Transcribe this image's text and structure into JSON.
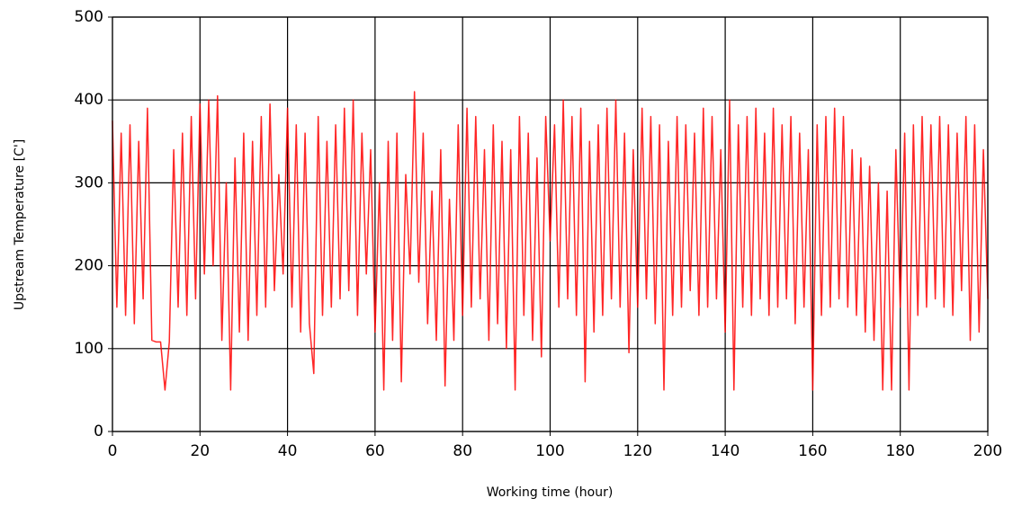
{
  "chart_data": {
    "type": "line",
    "x_label": "Working time (hour)",
    "y_label": "Upstream Temperature [C']",
    "x": [
      0,
      1,
      2,
      3,
      4,
      5,
      6,
      7,
      8,
      9,
      10,
      11,
      12,
      13,
      14,
      15,
      16,
      17,
      18,
      19,
      20,
      21,
      22,
      23,
      24,
      25,
      26,
      27,
      28,
      29,
      30,
      31,
      32,
      33,
      34,
      35,
      36,
      37,
      38,
      39,
      40,
      41,
      42,
      43,
      44,
      45,
      46,
      47,
      48,
      49,
      50,
      51,
      52,
      53,
      54,
      55,
      56,
      57,
      58,
      59,
      60,
      61,
      62,
      63,
      64,
      65,
      66,
      67,
      68,
      69,
      70,
      71,
      72,
      73,
      74,
      75,
      76,
      77,
      78,
      79,
      80,
      81,
      82,
      83,
      84,
      85,
      86,
      87,
      88,
      89,
      90,
      91,
      92,
      93,
      94,
      95,
      96,
      97,
      98,
      99,
      100,
      101,
      102,
      103,
      104,
      105,
      106,
      107,
      108,
      109,
      110,
      111,
      112,
      113,
      114,
      115,
      116,
      117,
      118,
      119,
      120,
      121,
      122,
      123,
      124,
      125,
      126,
      127,
      128,
      129,
      130,
      131,
      132,
      133,
      134,
      135,
      136,
      137,
      138,
      139,
      140,
      141,
      142,
      143,
      144,
      145,
      146,
      147,
      148,
      149,
      150,
      151,
      152,
      153,
      154,
      155,
      156,
      157,
      158,
      159,
      160,
      161,
      162,
      163,
      164,
      165,
      166,
      167,
      168,
      169,
      170,
      171,
      172,
      173,
      174,
      175,
      176,
      177,
      178,
      179,
      180,
      181,
      182,
      183,
      184,
      185,
      186,
      187,
      188,
      189,
      190,
      191,
      192,
      193,
      194,
      195,
      196,
      197,
      198,
      199,
      200
    ],
    "series": [
      {
        "color": "#ff0000",
        "values": [
          375,
          150,
          360,
          140,
          370,
          130,
          350,
          160,
          390,
          110,
          108,
          108,
          50,
          108,
          340,
          150,
          360,
          140,
          380,
          160,
          395,
          190,
          400,
          200,
          405,
          110,
          300,
          50,
          330,
          120,
          360,
          110,
          350,
          140,
          380,
          150,
          395,
          170,
          310,
          190,
          390,
          150,
          370,
          120,
          360,
          130,
          70,
          380,
          140,
          350,
          150,
          370,
          160,
          390,
          170,
          400,
          140,
          360,
          190,
          340,
          120,
          300,
          50,
          350,
          110,
          360,
          60,
          310,
          190,
          410,
          180,
          360,
          130,
          290,
          110,
          340,
          55,
          280,
          110,
          370,
          140,
          390,
          150,
          380,
          160,
          340,
          110,
          370,
          130,
          350,
          100,
          340,
          50,
          380,
          140,
          360,
          110,
          330,
          90,
          380,
          230,
          370,
          150,
          400,
          160,
          380,
          140,
          390,
          60,
          350,
          120,
          370,
          140,
          390,
          160,
          400,
          150,
          360,
          95,
          340,
          150,
          390,
          160,
          380,
          130,
          370,
          50,
          350,
          140,
          380,
          150,
          370,
          170,
          360,
          140,
          390,
          150,
          380,
          160,
          340,
          120,
          400,
          50,
          370,
          150,
          380,
          140,
          390,
          160,
          360,
          140,
          390,
          150,
          370,
          160,
          380,
          130,
          360,
          150,
          340,
          50,
          370,
          140,
          380,
          150,
          390,
          160,
          380,
          150,
          340,
          140,
          330,
          120,
          320,
          110,
          300,
          50,
          290,
          50,
          340,
          150,
          360,
          50,
          370,
          140,
          380,
          150,
          370,
          160,
          380,
          150,
          370,
          140,
          360,
          170,
          380,
          110,
          370,
          120,
          340,
          160
        ]
      }
    ],
    "xlim": [
      0,
      200
    ],
    "ylim": [
      0,
      500
    ],
    "xticks": [
      0,
      20,
      40,
      60,
      80,
      100,
      120,
      140,
      160,
      180,
      200
    ],
    "yticks": [
      0,
      100,
      200,
      300,
      400,
      500
    ],
    "grid": true
  }
}
